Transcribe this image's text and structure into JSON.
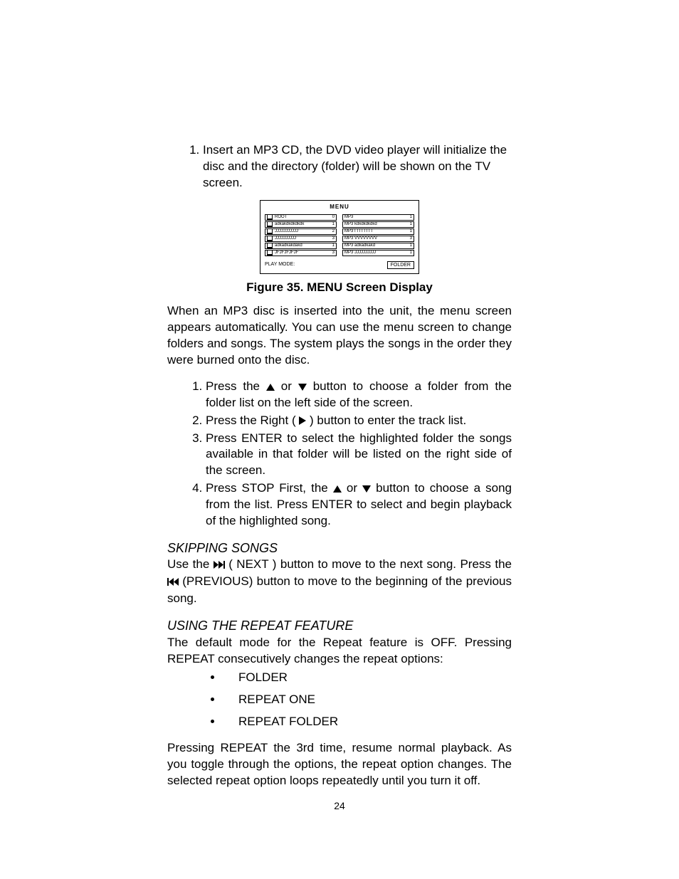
{
  "intro_list": [
    "Insert an MP3 CD, the DVD video player will initialize the disc and the directory (folder) will be shown on the TV screen."
  ],
  "menu_figure": {
    "title": "MENU",
    "left_rows": [
      {
        "label": "ROOT",
        "num": "0"
      },
      {
        "label": "adkakdkdkdkdk",
        "num": "1"
      },
      {
        "label": "JJJJJJJJJJJ",
        "num": "2"
      },
      {
        "label": "JJJJJJJJJJ",
        "num": "3"
      },
      {
        "label": "adkadkakdakd",
        "num": "1"
      },
      {
        "label": "JFJFJFJFJF",
        "num": "3"
      }
    ],
    "right_rows": [
      {
        "label": "MP3",
        "num": "1"
      },
      {
        "label": "MP3 kdkdkdkdkd",
        "num": "1"
      },
      {
        "label": "MP3 I I I  I I I  I I",
        "num": "1"
      },
      {
        "label": "MP3 VVVVVVVV",
        "num": "3"
      },
      {
        "label": "MP3 adkadkakd",
        "num": "1"
      },
      {
        "label": "MP3 JJJJJJJJJJ",
        "num": "1"
      }
    ],
    "footer_left": "PLAY MODE:",
    "footer_right": "FOLDER"
  },
  "figure_caption": "Figure 35. MENU Screen Display",
  "after_figure_para": "When an MP3 disc is inserted into the unit, the menu screen appears automatically. You can use the menu screen to change folders and songs. The system plays the songs in the order they were burned onto the disc.",
  "steps": {
    "s1a": "Press the ",
    "s1b": " or ",
    "s1c": " button to choose a folder from the folder list on the left side of the screen.",
    "s2a": "Press the Right  ( ",
    "s2b": " ) button to enter the track list.",
    "s3": "Press ENTER to select the highlighted folder  the songs available in that folder will be listed on the right side of the screen.",
    "s4a": "Press STOP First, the ",
    "s4b": "  or ",
    "s4c": " button to choose a song from the list. Press ENTER to select and begin playback of the highlighted song."
  },
  "skipping": {
    "heading": "SKIPPING SONGS",
    "a": "Use the ",
    "b": " ( NEXT ) button to move to the next song. Press the ",
    "c": " (PREVIOUS) button to move to the beginning of the previous song."
  },
  "repeat": {
    "heading": "USING THE REPEAT FEATURE",
    "intro": "The default mode for the Repeat feature is OFF. Pressing REPEAT consecutively  changes the repeat options:",
    "options": [
      "FOLDER",
      "REPEAT ONE",
      "REPEAT FOLDER"
    ],
    "outro": "Pressing REPEAT the 3rd time, resume normal playback.  As you toggle through the options, the repeat option changes. The selected repeat option loops repeatedly until you turn it off."
  },
  "page_number": "24"
}
